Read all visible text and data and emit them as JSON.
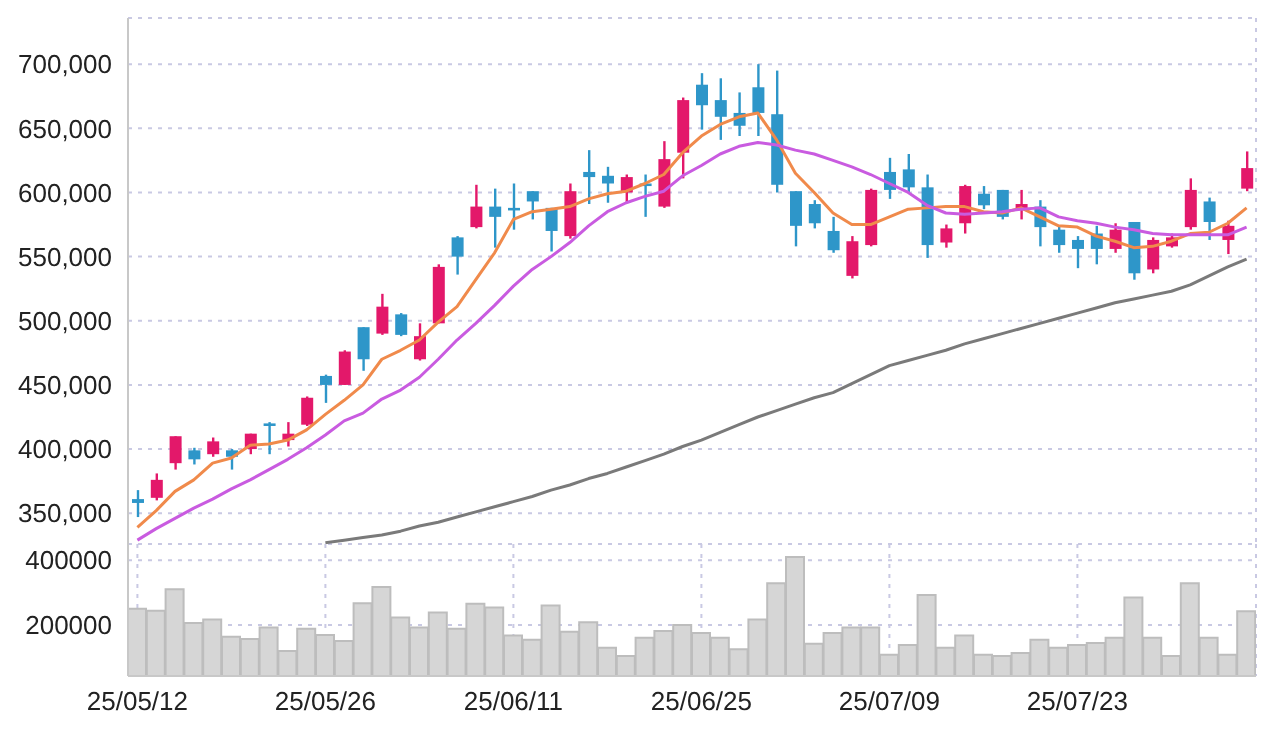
{
  "chart_data": [
    {
      "type": "candlestick",
      "categories": [
        null,
        null,
        null,
        null,
        null,
        null,
        null,
        null,
        null,
        null,
        null,
        null,
        null,
        null,
        null,
        null,
        null,
        null,
        null,
        null,
        null,
        null,
        null,
        null,
        null,
        null,
        null,
        null,
        null,
        null,
        null,
        null,
        null,
        null,
        null,
        null,
        null,
        null,
        null,
        null,
        null,
        null,
        null,
        null,
        null,
        null,
        null,
        null,
        null,
        null,
        null,
        null,
        null,
        null,
        null,
        null,
        null,
        null,
        null,
        null
      ],
      "ohlc": [
        [
          361000,
          368000,
          347000,
          358000
        ],
        [
          362000,
          381000,
          360000,
          376000
        ],
        [
          389000,
          410000,
          384000,
          410000
        ],
        [
          399000,
          401000,
          388000,
          392000
        ],
        [
          396000,
          409000,
          394000,
          406000
        ],
        [
          399000,
          400000,
          384000,
          394000
        ],
        [
          400000,
          412000,
          396000,
          412000
        ],
        [
          420000,
          421000,
          396000,
          418000
        ],
        [
          407000,
          421000,
          402000,
          412000
        ],
        [
          419000,
          441000,
          418000,
          440000
        ],
        [
          457000,
          458000,
          436000,
          450000
        ],
        [
          450000,
          477000,
          450000,
          476000
        ],
        [
          495000,
          495000,
          461000,
          470000
        ],
        [
          490000,
          521000,
          489000,
          511000
        ],
        [
          505000,
          506000,
          488000,
          489000
        ],
        [
          470000,
          498000,
          469000,
          488000
        ],
        [
          498000,
          544000,
          498000,
          542000
        ],
        [
          565000,
          566000,
          536000,
          550000
        ],
        [
          573000,
          606000,
          572000,
          589000
        ],
        [
          589000,
          603000,
          557000,
          581000
        ],
        [
          588000,
          607000,
          571000,
          586000
        ],
        [
          601000,
          601000,
          579000,
          593000
        ],
        [
          588000,
          588000,
          554000,
          570000
        ],
        [
          566000,
          607000,
          564000,
          601000
        ],
        [
          616000,
          633000,
          591000,
          612000
        ],
        [
          613000,
          620000,
          592000,
          607000
        ],
        [
          600000,
          614000,
          592000,
          612000
        ],
        [
          607000,
          614000,
          581000,
          605000
        ],
        [
          589000,
          640000,
          588000,
          626000
        ],
        [
          631000,
          674000,
          611000,
          672000
        ],
        [
          684000,
          693000,
          649000,
          668000
        ],
        [
          672000,
          689000,
          641000,
          659000
        ],
        [
          662000,
          678000,
          644000,
          652000
        ],
        [
          682000,
          700000,
          644000,
          662000
        ],
        [
          661000,
          695000,
          600000,
          606000
        ],
        [
          601000,
          601000,
          558000,
          574000
        ],
        [
          591000,
          594000,
          572000,
          576000
        ],
        [
          570000,
          581000,
          553000,
          555000
        ],
        [
          535000,
          566000,
          533000,
          562000
        ],
        [
          559000,
          603000,
          558000,
          602000
        ],
        [
          616000,
          627000,
          595000,
          602000
        ],
        [
          618000,
          630000,
          600000,
          604000
        ],
        [
          604000,
          614000,
          549000,
          559000
        ],
        [
          561000,
          575000,
          557000,
          572000
        ],
        [
          576000,
          606000,
          568000,
          605000
        ],
        [
          599000,
          605000,
          587000,
          590000
        ],
        [
          602000,
          602000,
          579000,
          581000
        ],
        [
          587000,
          602000,
          579000,
          591000
        ],
        [
          589000,
          594000,
          558000,
          573000
        ],
        [
          571000,
          574000,
          553000,
          559000
        ],
        [
          563000,
          566000,
          541000,
          556000
        ],
        [
          568000,
          574000,
          544000,
          556000
        ],
        [
          556000,
          576000,
          553000,
          571000
        ],
        [
          577000,
          577000,
          532000,
          537000
        ],
        [
          540000,
          565000,
          537000,
          563000
        ],
        [
          558000,
          568000,
          557000,
          565000
        ],
        [
          573000,
          611000,
          571000,
          602000
        ],
        [
          593000,
          596000,
          563000,
          577000
        ],
        [
          563000,
          578000,
          552000,
          574000
        ],
        [
          603000,
          632000,
          601000,
          619000
        ]
      ],
      "colors": [
        "#2e96c9",
        "#e3186a",
        "#e3186a",
        "#2e96c9",
        "#e3186a",
        "#2e96c9",
        "#e3186a",
        "#2e96c9",
        "#e3186a",
        "#e3186a",
        "#2e96c9",
        "#e3186a",
        "#2e96c9",
        "#e3186a",
        "#2e96c9",
        "#e3186a",
        "#e3186a",
        "#2e96c9",
        "#e3186a",
        "#2e96c9",
        "#2e96c9",
        "#2e96c9",
        "#2e96c9",
        "#e3186a",
        "#2e96c9",
        "#2e96c9",
        "#e3186a",
        "#2e96c9",
        "#e3186a",
        "#e3186a",
        "#2e96c9",
        "#2e96c9",
        "#2e96c9",
        "#2e96c9",
        "#2e96c9",
        "#2e96c9",
        "#2e96c9",
        "#2e96c9",
        "#e3186a",
        "#e3186a",
        "#2e96c9",
        "#2e96c9",
        "#2e96c9",
        "#e3186a",
        "#e3186a",
        "#2e96c9",
        "#2e96c9",
        "#e3186a",
        "#2e96c9",
        "#2e96c9",
        "#2e96c9",
        "#2e96c9",
        "#e3186a",
        "#2e96c9",
        "#e3186a",
        "#e3186a",
        "#e3186a",
        "#2e96c9",
        "#e3186a",
        "#e3186a"
      ],
      "series": [
        {
          "type": "line",
          "color": "#f08a4b",
          "values": [
            339000,
            352000,
            367000,
            376000,
            389000,
            393000,
            403000,
            404000,
            407000,
            415000,
            427000,
            438000,
            450000,
            470000,
            477000,
            485000,
            499000,
            511000,
            532000,
            553000,
            579000,
            585000,
            587000,
            589000,
            595000,
            599000,
            601000,
            607000,
            614000,
            631000,
            644000,
            653000,
            659000,
            662000,
            641000,
            615000,
            600000,
            584000,
            575000,
            575000,
            581000,
            587000,
            588000,
            589000,
            589000,
            585000,
            584000,
            588000,
            581000,
            574000,
            573000,
            566000,
            562000,
            557000,
            558000,
            562000,
            568000,
            569000,
            576000,
            588000
          ]
        },
        {
          "type": "line",
          "color": "#c95be0",
          "values": [
            329000,
            338000,
            346000,
            354000,
            361000,
            369000,
            376000,
            384000,
            392000,
            401000,
            411000,
            422000,
            428000,
            439000,
            446000,
            456000,
            470000,
            485000,
            498000,
            512000,
            527000,
            540000,
            550000,
            561000,
            574000,
            585000,
            592000,
            597000,
            601000,
            613000,
            621000,
            630000,
            636000,
            639000,
            637000,
            633000,
            630000,
            625000,
            620000,
            614000,
            607000,
            600000,
            590000,
            584000,
            583000,
            584000,
            585000,
            587000,
            588000,
            581000,
            578000,
            576000,
            573000,
            571000,
            568000,
            567000,
            567000,
            567000,
            567000,
            573000
          ]
        },
        {
          "type": "line",
          "color": "#7a7a7a",
          "values": [
            null,
            null,
            null,
            null,
            null,
            null,
            null,
            null,
            null,
            null,
            327000,
            329000,
            331000,
            333000,
            336000,
            340000,
            343000,
            347000,
            351000,
            355000,
            359000,
            363000,
            368000,
            372000,
            377000,
            381000,
            386000,
            391000,
            396000,
            402000,
            407000,
            413000,
            419000,
            425000,
            430000,
            435000,
            440000,
            444000,
            451000,
            458000,
            465000,
            469000,
            473000,
            477000,
            482000,
            486000,
            490000,
            494000,
            498000,
            502000,
            506000,
            510000,
            514000,
            517000,
            520000,
            523000,
            528000,
            535000,
            542000,
            548000
          ]
        }
      ],
      "ylim": [
        326000,
        736000
      ],
      "yticks": [
        {
          "value": 350000,
          "label": "350,000"
        },
        {
          "value": 400000,
          "label": "400,000"
        },
        {
          "value": 450000,
          "label": "450,000"
        },
        {
          "value": 500000,
          "label": "500,000"
        },
        {
          "value": 550000,
          "label": "550,000"
        },
        {
          "value": 600000,
          "label": "600,000"
        },
        {
          "value": 650000,
          "label": "650,000"
        },
        {
          "value": 700000,
          "label": "700,000"
        }
      ],
      "grid": true,
      "tick_labels": "y"
    },
    {
      "type": "bar",
      "categories": [
        "25/05/12",
        null,
        null,
        null,
        null,
        null,
        null,
        null,
        null,
        null,
        "25/05/26",
        null,
        null,
        null,
        null,
        null,
        null,
        null,
        null,
        null,
        "25/06/11",
        null,
        null,
        null,
        null,
        null,
        null,
        null,
        null,
        null,
        "25/06/25",
        null,
        null,
        null,
        null,
        null,
        null,
        null,
        null,
        null,
        "25/07/09",
        null,
        null,
        null,
        null,
        null,
        null,
        null,
        null,
        null,
        "25/07/23",
        null,
        null,
        null,
        null,
        null,
        null,
        null,
        null,
        null
      ],
      "values": [
        250000,
        244000,
        310000,
        206000,
        217000,
        163000,
        156000,
        192000,
        119000,
        188000,
        169000,
        150000,
        267000,
        317000,
        223000,
        192000,
        238000,
        188000,
        265000,
        254000,
        167000,
        154000,
        260000,
        179000,
        208000,
        129000,
        104000,
        160000,
        181000,
        200000,
        175000,
        160000,
        125000,
        217000,
        329000,
        410000,
        142000,
        175000,
        192000,
        192000,
        108000,
        138000,
        292000,
        129000,
        167000,
        108000,
        104000,
        113000,
        154000,
        129000,
        138000,
        144000,
        160000,
        285000,
        160000,
        104000,
        329000,
        160000,
        108000,
        242000
      ],
      "color": "#d6d6d6",
      "ylim": [
        42000,
        450000
      ],
      "yticks": [
        200000,
        400000
      ],
      "grid": true
    }
  ]
}
